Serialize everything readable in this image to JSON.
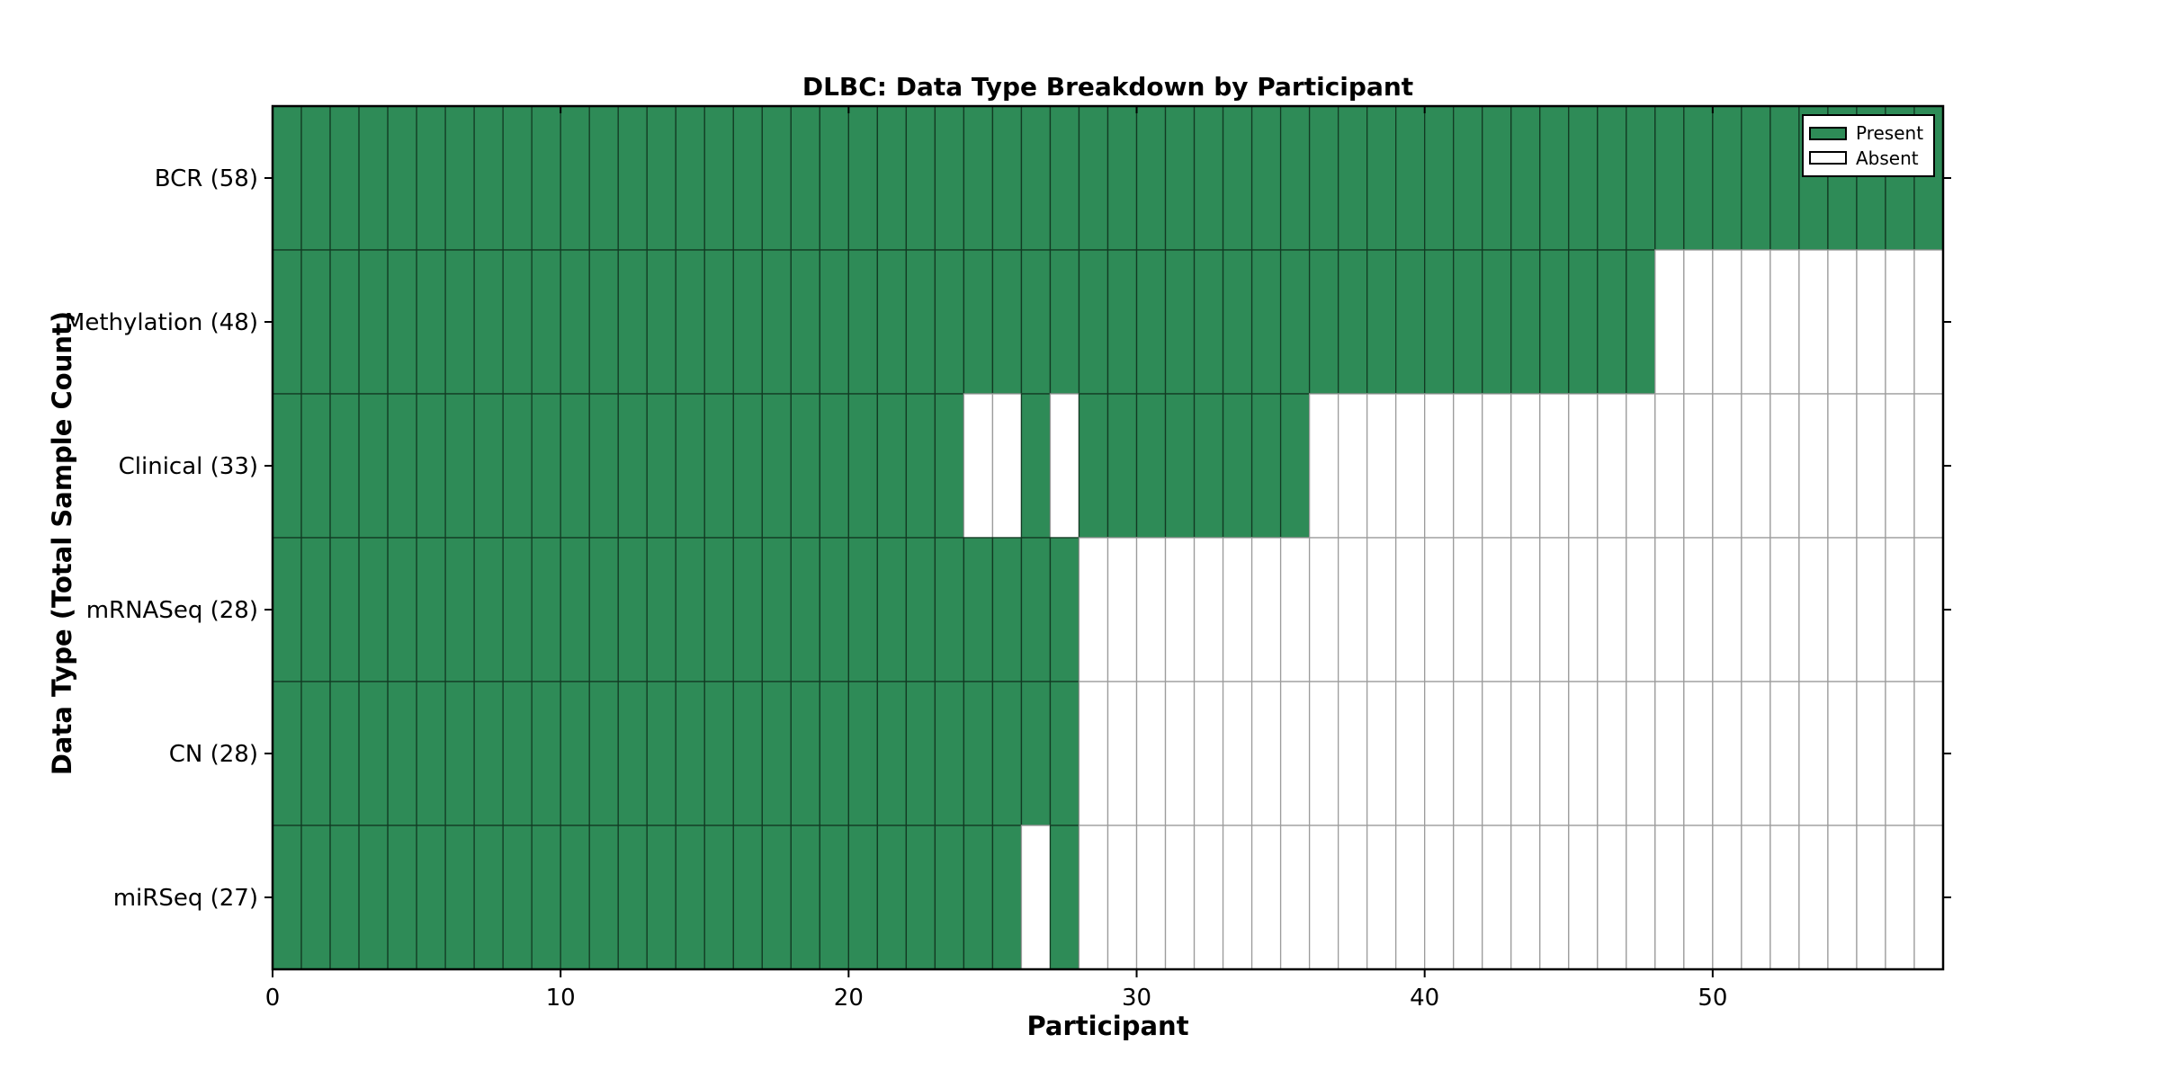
{
  "chart_data": {
    "type": "heatmap",
    "title": "DLBC: Data Type Breakdown by Participant",
    "xlabel": "Participant",
    "ylabel": "Data Type (Total Sample Count)",
    "n_participants": 58,
    "xlim": [
      0,
      58
    ],
    "x_ticks": [
      0,
      10,
      20,
      30,
      40,
      50
    ],
    "grid": false,
    "rows": [
      {
        "data_type": "BCR",
        "total": 58,
        "label": "BCR (58)",
        "present_ranges": [
          [
            0,
            58
          ]
        ]
      },
      {
        "data_type": "Methylation",
        "total": 48,
        "label": "Methylation (48)",
        "present_ranges": [
          [
            0,
            48
          ]
        ]
      },
      {
        "data_type": "Clinical",
        "total": 33,
        "label": "Clinical (33)",
        "present_ranges": [
          [
            0,
            24
          ],
          [
            26,
            27
          ],
          [
            28,
            36
          ]
        ]
      },
      {
        "data_type": "mRNASeq",
        "total": 28,
        "label": "mRNASeq (28)",
        "present_ranges": [
          [
            0,
            28
          ]
        ]
      },
      {
        "data_type": "CN",
        "total": 28,
        "label": "CN (28)",
        "present_ranges": [
          [
            0,
            28
          ]
        ]
      },
      {
        "data_type": "miRSeq",
        "total": 27,
        "label": "miRSeq (27)",
        "present_ranges": [
          [
            0,
            26
          ],
          [
            27,
            28
          ]
        ]
      }
    ],
    "colors": {
      "present": "#2e8b57",
      "absent": "#ffffff",
      "present_edge": "#123a23",
      "absent_edge": "#9c9c9c",
      "axis": "#000000",
      "background": "#ffffff"
    },
    "legend": {
      "position": "upper-right",
      "entries": [
        {
          "key": "present",
          "label": "Present"
        },
        {
          "key": "absent",
          "label": "Absent"
        }
      ]
    }
  }
}
